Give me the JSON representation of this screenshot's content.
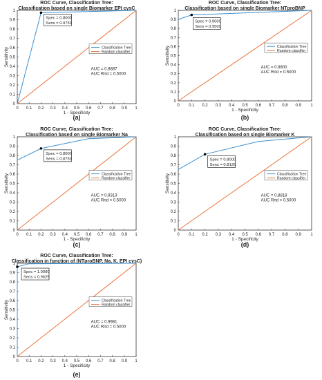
{
  "colors": {
    "tree": "#3b8fd0",
    "random": "#e8743b",
    "axis": "#333333"
  },
  "chart_data": [
    {
      "type": "line",
      "panel_label": "(a)",
      "title": "ROC Curve, Classification Tree:",
      "subtitle": "Classification based on single Biomarker EPI cysC",
      "xlabel": "1 - Specificity",
      "ylabel": "Sensitivity",
      "xlim": [
        0,
        1
      ],
      "ylim": [
        0,
        1
      ],
      "xticks": [
        "0",
        "0.1",
        "0.2",
        "0.3",
        "0.4",
        "0.5",
        "0.6",
        "0.7",
        "0.8",
        "0.9",
        "1"
      ],
      "yticks": [
        "0",
        "0.1",
        "0.2",
        "0.3",
        "0.4",
        "0.5",
        "0.6",
        "0.7",
        "0.8",
        "0.9",
        "1"
      ],
      "legend_position": "center-right",
      "series": [
        {
          "name": "Classification Tree",
          "x": [
            0,
            0.2,
            1
          ],
          "y": [
            0,
            0.975,
            1
          ]
        },
        {
          "name": "Random classifier",
          "x": [
            0,
            1
          ],
          "y": [
            0,
            1
          ]
        }
      ],
      "marker": {
        "x": 0.2,
        "y": 0.975
      },
      "datatip": [
        "Spec = 0.8000",
        "Sens = 0.9750"
      ],
      "auc_lines": [
        "AUC        = 0.8887",
        "AUC Rnd = 0.5000"
      ]
    },
    {
      "type": "line",
      "panel_label": "(b)",
      "title": "ROC Curve, Classification Tree:",
      "subtitle": "Classification based on single Biomarker NTproBNP",
      "xlabel": "1 - Specificity",
      "ylabel": "Sensitivity",
      "xlim": [
        0,
        1
      ],
      "ylim": [
        0,
        1
      ],
      "xticks": [
        "0",
        "0.1",
        "0.2",
        "0.3",
        "0.4",
        "0.5",
        "0.6",
        "0.7",
        "0.8",
        "0.9",
        "1"
      ],
      "yticks": [
        "0",
        "0.1",
        "0.2",
        "0.3",
        "0.4",
        "0.5",
        "0.6",
        "0.7",
        "0.8",
        "0.9",
        "1"
      ],
      "legend_position": "center-right",
      "series": [
        {
          "name": "Classification Tree",
          "x": [
            0,
            0.1,
            1
          ],
          "y": [
            0.9,
            0.95,
            1
          ]
        },
        {
          "name": "Random classifier",
          "x": [
            0,
            1
          ],
          "y": [
            0,
            1
          ]
        }
      ],
      "marker": {
        "x": 0.1,
        "y": 0.95
      },
      "datatip": [
        "Spec = 0.9000",
        "Sens = 0.9500"
      ],
      "auc_lines": [
        "AUC        = 0.9800",
        "AUC Rnd = 0.5000"
      ]
    },
    {
      "type": "line",
      "panel_label": "(c)",
      "title": "ROC Curve, Classification Tree:",
      "subtitle": "Classification based on single Biomarker Na",
      "xlabel": "1 - Specificity",
      "ylabel": "Sensitivity",
      "xlim": [
        0,
        1
      ],
      "ylim": [
        0,
        1
      ],
      "xticks": [
        "0",
        "0.1",
        "0.2",
        "0.3",
        "0.4",
        "0.5",
        "0.6",
        "0.7",
        "0.8",
        "0.9",
        "1"
      ],
      "yticks": [
        "0",
        "0.1",
        "0.2",
        "0.3",
        "0.4",
        "0.5",
        "0.6",
        "0.7",
        "0.8",
        "0.9",
        "1"
      ],
      "legend_position": "center-right",
      "series": [
        {
          "name": "Classification Tree",
          "x": [
            0,
            0.2,
            0.6,
            1
          ],
          "y": [
            0.75,
            0.875,
            0.98,
            1
          ]
        },
        {
          "name": "Random classifier",
          "x": [
            0,
            1
          ],
          "y": [
            0,
            1
          ]
        }
      ],
      "marker": {
        "x": 0.2,
        "y": 0.875
      },
      "datatip": [
        "Spec = 0.8000",
        "Sens = 0.8750"
      ],
      "auc_lines": [
        "AUC        = 0.9313",
        "AUC Rnd = 0.5000"
      ]
    },
    {
      "type": "line",
      "panel_label": "(d)",
      "title": "ROC Curve, Classification Tree:",
      "subtitle": "Classification based on single Biomarker K",
      "xlabel": "1 - Specificity",
      "ylabel": "Sensitivity",
      "xlim": [
        0,
        1
      ],
      "ylim": [
        0,
        1
      ],
      "xticks": [
        "0",
        "0.1",
        "0.2",
        "0.3",
        "0.4",
        "0.5",
        "0.6",
        "0.7",
        "0.8",
        "0.9",
        "1"
      ],
      "yticks": [
        "0",
        "0.1",
        "0.2",
        "0.3",
        "0.4",
        "0.5",
        "0.6",
        "0.7",
        "0.8",
        "0.9",
        "1"
      ],
      "legend_position": "center-right",
      "series": [
        {
          "name": "Classification Tree",
          "x": [
            0,
            0.2,
            0.6,
            1
          ],
          "y": [
            0.65,
            0.8125,
            0.95,
            1
          ]
        },
        {
          "name": "Random classifier",
          "x": [
            0,
            1
          ],
          "y": [
            0,
            1
          ]
        }
      ],
      "marker": {
        "x": 0.2,
        "y": 0.8125
      },
      "datatip": [
        "Spec = 0.8000",
        "Sens = 0.8125"
      ],
      "auc_lines": [
        "AUC        = 0.8818",
        "AUC Rnd = 0.5000"
      ]
    },
    {
      "type": "line",
      "panel_label": "(e)",
      "title": "ROC Curve, Classification Tree:",
      "subtitle": "Classification in function of (NTproBNP, Na, K, EPI cysC)",
      "xlabel": "1 - Specificity",
      "ylabel": "Sensitivity",
      "xlim": [
        0,
        1
      ],
      "ylim": [
        0,
        1
      ],
      "xticks": [
        "0",
        "0.1",
        "0.2",
        "0.3",
        "0.4",
        "0.5",
        "0.6",
        "0.7",
        "0.8",
        "0.9",
        "1"
      ],
      "yticks": [
        "0",
        "0.1",
        "0.2",
        "0.3",
        "0.4",
        "0.5",
        "0.6",
        "0.7",
        "0.8",
        "0.9",
        "1"
      ],
      "legend_position": "center-right",
      "series": [
        {
          "name": "Classification Tree",
          "x": [
            0,
            0,
            0.1,
            1
          ],
          "y": [
            0,
            0.9625,
            0.995,
            1
          ]
        },
        {
          "name": "Random classifier",
          "x": [
            0,
            1
          ],
          "y": [
            0,
            1
          ]
        }
      ],
      "marker": {
        "x": 0,
        "y": 0.9625
      },
      "datatip": [
        "Spec = 1.0000",
        "Sens = 0.9625"
      ],
      "auc_lines": [
        "AUC        = 0.9981",
        "AUC Rnd = 0.5000"
      ]
    }
  ]
}
